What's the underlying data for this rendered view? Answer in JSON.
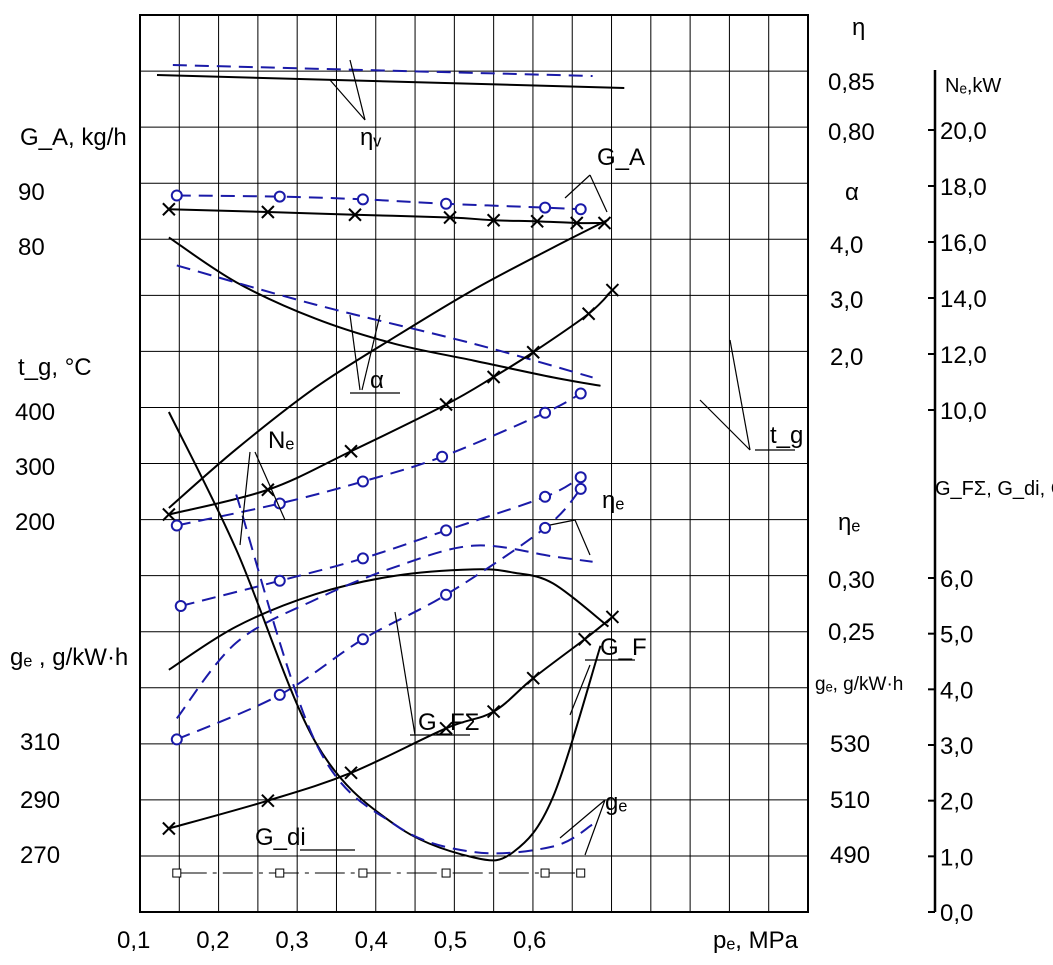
{
  "chart_data": {
    "type": "line",
    "title": "",
    "x": {
      "label": "pₑ, MPa",
      "ticks": [
        "0,1",
        "0,2",
        "0,3",
        "0,4",
        "0,5",
        "0,6"
      ],
      "range": [
        0.1,
        0.7
      ]
    },
    "axes_labels": {
      "eta": "η",
      "Ne": "Nₑ,kW",
      "GA": "G_A, kg/h",
      "alpha": "α",
      "tg": "t_g, °C",
      "GF": "G_FΣ, G_di, G_F, kg/h",
      "eta_e": "ηₑ",
      "ge_left": "gₑ , g/kW·h",
      "ge_right": "gₑ, g/kW·h"
    },
    "tick_labels": {
      "eta": [
        "0,85",
        "0,80"
      ],
      "GA": [
        "90",
        "80"
      ],
      "alpha": [
        "4,0",
        "3,0",
        "2,0"
      ],
      "tg": [
        "400",
        "300",
        "200"
      ],
      "eta_e": [
        "0,30",
        "0,25"
      ],
      "ge_left": [
        "310",
        "290",
        "270"
      ],
      "ge_right": [
        "530",
        "510",
        "490"
      ],
      "Ne": [
        "20,0",
        "18,0",
        "16,0",
        "14,0",
        "12,0",
        "10,0"
      ],
      "GF": [
        "6,0",
        "5,0",
        "4,0",
        "3,0",
        "2,0",
        "1,0",
        "0,0"
      ]
    },
    "curve_labels": {
      "eta_v": "ηᵥ",
      "GA": "G_A",
      "alpha": "α",
      "tg": "t_g",
      "Ne": "Nₑ",
      "eta_e": "ηₑ",
      "GF": "G_F",
      "GFsum": "G_FΣ",
      "ge": "gₑ",
      "Gdi": "G_di"
    },
    "legend": {
      "solid": "solid line with × markers",
      "dashed": "dashed line with ○ markers"
    },
    "series": [
      {
        "key": "eta_v",
        "style": "solid",
        "axis": "eta",
        "x": [
          0.1,
          0.69
        ],
        "y": [
          0.855,
          0.842
        ]
      },
      {
        "key": "eta_v",
        "style": "dashed",
        "axis": "eta",
        "x": [
          0.12,
          0.65
        ],
        "y": [
          0.865,
          0.854
        ]
      },
      {
        "key": "GA",
        "style": "solid",
        "axis": "GA",
        "marker": "x",
        "x": [
          0.115,
          0.24,
          0.35,
          0.47,
          0.525,
          0.58,
          0.63,
          0.665
        ],
        "y": [
          86.5,
          86.0,
          85.5,
          85.0,
          84.5,
          84.3,
          84.0,
          84.0
        ]
      },
      {
        "key": "GA",
        "style": "dashed",
        "axis": "GA",
        "marker": "o",
        "x": [
          0.125,
          0.255,
          0.36,
          0.465,
          0.59,
          0.635
        ],
        "y": [
          89.0,
          88.8,
          88.3,
          87.5,
          86.8,
          86.5
        ]
      },
      {
        "key": "alpha",
        "style": "solid",
        "axis": "alpha",
        "x": [
          0.115,
          0.2,
          0.3,
          0.4,
          0.5,
          0.6,
          0.66
        ],
        "y": [
          4.1,
          3.3,
          2.65,
          2.2,
          1.9,
          1.6,
          1.45
        ]
      },
      {
        "key": "alpha",
        "style": "dashed",
        "axis": "alpha",
        "x": [
          0.125,
          0.3,
          0.5,
          0.65
        ],
        "y": [
          3.6,
          2.9,
          2.2,
          1.6
        ]
      },
      {
        "key": "tg",
        "style": "solid",
        "axis": "tg",
        "marker": "x",
        "x": [
          0.115,
          0.24,
          0.345,
          0.465,
          0.525,
          0.575,
          0.645,
          0.675
        ],
        "y": [
          210,
          255,
          325,
          410,
          460,
          505,
          575,
          618
        ]
      },
      {
        "key": "tg",
        "style": "dashed",
        "axis": "tg",
        "marker": "o",
        "x": [
          0.125,
          0.255,
          0.36,
          0.46,
          0.59,
          0.635
        ],
        "y": [
          190,
          230,
          270,
          315,
          395,
          430
        ]
      },
      {
        "key": "Ne",
        "style": "solid",
        "axis": "Ne",
        "x": [
          0.115,
          0.2,
          0.3,
          0.4,
          0.5,
          0.6,
          0.67
        ],
        "y": [
          6.5,
          8.6,
          10.8,
          12.6,
          14.3,
          15.8,
          16.8
        ]
      },
      {
        "key": "Ne",
        "style": "dashed",
        "axis": "Ne",
        "marker": "o",
        "x": [
          0.13,
          0.255,
          0.36,
          0.465,
          0.59,
          0.635
        ],
        "y": [
          3.0,
          3.9,
          4.7,
          5.7,
          6.9,
          7.6
        ]
      },
      {
        "key": "eta_e",
        "style": "solid",
        "axis": "eta_e",
        "x": [
          0.115,
          0.2,
          0.3,
          0.4,
          0.5,
          0.55,
          0.6,
          0.67
        ],
        "y": [
          0.215,
          0.255,
          0.285,
          0.302,
          0.308,
          0.305,
          0.295,
          0.255
        ]
      },
      {
        "key": "eta_e",
        "style": "dashed",
        "axis": "eta_e",
        "x": [
          0.125,
          0.2,
          0.3,
          0.4,
          0.5,
          0.6,
          0.65
        ],
        "y": [
          0.17,
          0.24,
          0.28,
          0.31,
          0.33,
          0.32,
          0.315
        ]
      },
      {
        "key": "GF",
        "style": "solid",
        "axis": "GF",
        "marker": "x",
        "x": [
          0.115,
          0.24,
          0.345,
          0.465,
          0.525,
          0.575,
          0.64,
          0.675
        ],
        "y": [
          1.5,
          2.0,
          2.5,
          3.3,
          3.6,
          4.2,
          4.9,
          5.3
        ]
      },
      {
        "key": "GFsum",
        "style": "dashed",
        "axis": "GF",
        "marker": "o",
        "x": [
          0.125,
          0.255,
          0.36,
          0.465,
          0.59,
          0.635
        ],
        "y": [
          3.1,
          3.9,
          4.9,
          5.7,
          6.9,
          7.6
        ]
      },
      {
        "key": "ge",
        "style": "solid",
        "axis": "ge_right",
        "x": [
          0.115,
          0.2,
          0.3,
          0.4,
          0.5,
          0.55,
          0.6,
          0.66
        ],
        "y": [
          650,
          600,
          530,
          500,
          488,
          490,
          510,
          565
        ]
      },
      {
        "key": "ge",
        "style": "dashed",
        "axis": "ge_right",
        "x": [
          0.2,
          0.3,
          0.4,
          0.5,
          0.6,
          0.65
        ],
        "y": [
          620,
          530,
          500,
          490,
          492,
          500
        ]
      },
      {
        "key": "Gdi",
        "style": "dash-dot",
        "axis": "GF",
        "marker": "square",
        "x": [
          0.125,
          0.255,
          0.36,
          0.465,
          0.59,
          0.635
        ],
        "y": [
          0.7,
          0.7,
          0.7,
          0.7,
          0.7,
          0.7
        ]
      }
    ]
  }
}
